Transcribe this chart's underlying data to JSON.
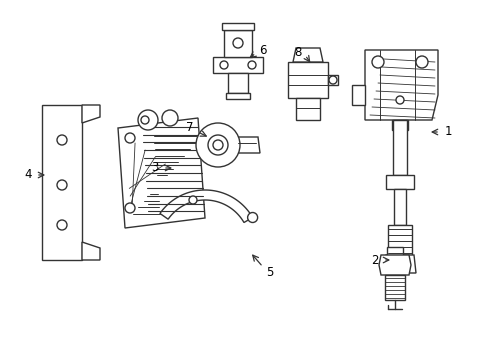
{
  "bg_color": "#ffffff",
  "line_color": "#333333",
  "line_width": 1.0,
  "fig_width": 4.89,
  "fig_height": 3.6,
  "dpi": 100
}
